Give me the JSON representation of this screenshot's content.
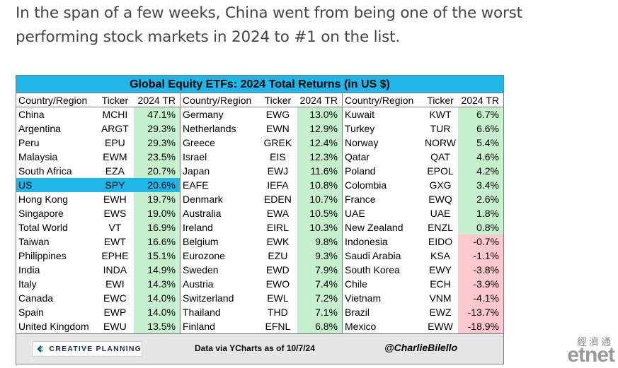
{
  "intro_text": "In the span of a few weeks, China went from being one of the worst performing stock markets in 2024 to #1 on the list.",
  "chart_data": {
    "type": "table",
    "title": "Global Equity ETFs: 2024 Total Returns (in US $)",
    "headers": [
      "Country/Region",
      "Ticker",
      "2024 TR"
    ],
    "highlight_country": "US",
    "colors": {
      "title_bg": "#1fb6e8",
      "positive": "#c6efce",
      "negative": "#ffc7ce",
      "highlight": "#1fb6e8"
    },
    "columns": [
      [
        {
          "country": "China",
          "ticker": "MCHI",
          "value": 47.1,
          "label": "47.1%"
        },
        {
          "country": "Argentina",
          "ticker": "ARGT",
          "value": 29.3,
          "label": "29.3%"
        },
        {
          "country": "Peru",
          "ticker": "EPU",
          "value": 29.3,
          "label": "29.3%"
        },
        {
          "country": "Malaysia",
          "ticker": "EWM",
          "value": 23.5,
          "label": "23.5%"
        },
        {
          "country": "South Africa",
          "ticker": "EZA",
          "value": 20.7,
          "label": "20.7%"
        },
        {
          "country": "US",
          "ticker": "SPY",
          "value": 20.6,
          "label": "20.6%"
        },
        {
          "country": "Hong Kong",
          "ticker": "EWH",
          "value": 19.7,
          "label": "19.7%"
        },
        {
          "country": "Singapore",
          "ticker": "EWS",
          "value": 19.0,
          "label": "19.0%"
        },
        {
          "country": "Total World",
          "ticker": "VT",
          "value": 16.9,
          "label": "16.9%"
        },
        {
          "country": "Taiwan",
          "ticker": "EWT",
          "value": 16.6,
          "label": "16.6%"
        },
        {
          "country": "Philippines",
          "ticker": "EPHE",
          "value": 15.1,
          "label": "15.1%"
        },
        {
          "country": "India",
          "ticker": "INDA",
          "value": 14.9,
          "label": "14.9%"
        },
        {
          "country": "Italy",
          "ticker": "EWI",
          "value": 14.3,
          "label": "14.3%"
        },
        {
          "country": "Canada",
          "ticker": "EWC",
          "value": 14.0,
          "label": "14.0%"
        },
        {
          "country": "Spain",
          "ticker": "EWP",
          "value": 14.0,
          "label": "14.0%"
        },
        {
          "country": "United Kingdom",
          "ticker": "EWU",
          "value": 13.5,
          "label": "13.5%"
        }
      ],
      [
        {
          "country": "Germany",
          "ticker": "EWG",
          "value": 13.0,
          "label": "13.0%"
        },
        {
          "country": "Netherlands",
          "ticker": "EWN",
          "value": 12.9,
          "label": "12.9%"
        },
        {
          "country": "Greece",
          "ticker": "GREK",
          "value": 12.4,
          "label": "12.4%"
        },
        {
          "country": "Israel",
          "ticker": "EIS",
          "value": 12.3,
          "label": "12.3%"
        },
        {
          "country": "Japan",
          "ticker": "EWJ",
          "value": 11.6,
          "label": "11.6%"
        },
        {
          "country": "EAFE",
          "ticker": "IEFA",
          "value": 10.8,
          "label": "10.8%"
        },
        {
          "country": "Denmark",
          "ticker": "EDEN",
          "value": 10.7,
          "label": "10.7%"
        },
        {
          "country": "Australia",
          "ticker": "EWA",
          "value": 10.5,
          "label": "10.5%"
        },
        {
          "country": "Ireland",
          "ticker": "EIRL",
          "value": 10.3,
          "label": "10.3%"
        },
        {
          "country": "Belgium",
          "ticker": "EWK",
          "value": 9.8,
          "label": "9.8%"
        },
        {
          "country": "Eurozone",
          "ticker": "EZU",
          "value": 9.3,
          "label": "9.3%"
        },
        {
          "country": "Sweden",
          "ticker": "EWD",
          "value": 7.9,
          "label": "7.9%"
        },
        {
          "country": "Austria",
          "ticker": "EWO",
          "value": 7.4,
          "label": "7.4%"
        },
        {
          "country": "Switzerland",
          "ticker": "EWL",
          "value": 7.2,
          "label": "7.2%"
        },
        {
          "country": "Thailand",
          "ticker": "THD",
          "value": 7.1,
          "label": "7.1%"
        },
        {
          "country": "Finland",
          "ticker": "EFNL",
          "value": 6.8,
          "label": "6.8%"
        }
      ],
      [
        {
          "country": "Kuwait",
          "ticker": "KWT",
          "value": 6.7,
          "label": "6.7%"
        },
        {
          "country": "Turkey",
          "ticker": "TUR",
          "value": 6.6,
          "label": "6.6%"
        },
        {
          "country": "Norway",
          "ticker": "NORW",
          "value": 5.4,
          "label": "5.4%"
        },
        {
          "country": "Qatar",
          "ticker": "QAT",
          "value": 4.6,
          "label": "4.6%"
        },
        {
          "country": "Poland",
          "ticker": "EPOL",
          "value": 4.2,
          "label": "4.2%"
        },
        {
          "country": "Colombia",
          "ticker": "GXG",
          "value": 3.4,
          "label": "3.4%"
        },
        {
          "country": "France",
          "ticker": "EWQ",
          "value": 2.6,
          "label": "2.6%"
        },
        {
          "country": "UAE",
          "ticker": "UAE",
          "value": 1.8,
          "label": "1.8%"
        },
        {
          "country": "New Zealand",
          "ticker": "ENZL",
          "value": 0.8,
          "label": "0.8%"
        },
        {
          "country": "Indonesia",
          "ticker": "EIDO",
          "value": -0.7,
          "label": "-0.7%"
        },
        {
          "country": "Saudi Arabia",
          "ticker": "KSA",
          "value": -1.1,
          "label": "-1.1%"
        },
        {
          "country": "South Korea",
          "ticker": "EWY",
          "value": -3.8,
          "label": "-3.8%"
        },
        {
          "country": "Chile",
          "ticker": "ECH",
          "value": -3.9,
          "label": "-3.9%"
        },
        {
          "country": "Vietnam",
          "ticker": "VNM",
          "value": -4.1,
          "label": "-4.1%"
        },
        {
          "country": "Brazil",
          "ticker": "EWZ",
          "value": -13.7,
          "label": "-13.7%"
        },
        {
          "country": "Mexico",
          "ticker": "EWW",
          "value": -18.9,
          "label": "-18.9%"
        }
      ]
    ]
  },
  "footer": {
    "logo_text": "CREATIVE PLANNING",
    "logo_icon": "c-logo-icon",
    "source": "Data via YCharts as of 10/7/24",
    "handle": "@CharlieBilello"
  },
  "watermark": {
    "cn": "經濟通",
    "en": "etnet"
  }
}
